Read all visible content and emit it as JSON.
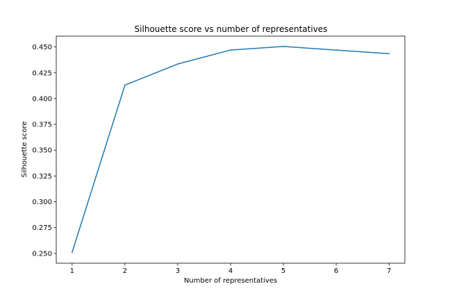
{
  "chart_data": {
    "type": "line",
    "title": "Silhouette score vs number of representatives",
    "xlabel": "Number of representatives",
    "ylabel": "Silhouette score",
    "x": [
      1,
      2,
      3,
      4,
      5,
      6,
      7
    ],
    "series": [
      {
        "values": [
          0.251,
          0.413,
          0.4335,
          0.447,
          0.4505,
          0.447,
          0.4435
        ]
      }
    ],
    "xlim": [
      0.7,
      7.3
    ],
    "ylim": [
      0.2405,
      0.4605
    ],
    "xticks": [
      "1",
      "2",
      "3",
      "4",
      "5",
      "6",
      "7"
    ],
    "yticks": [
      "0.250",
      "0.275",
      "0.300",
      "0.325",
      "0.350",
      "0.375",
      "0.400",
      "0.425",
      "0.450"
    ],
    "grid": false,
    "line_color": "#1f77b4"
  }
}
